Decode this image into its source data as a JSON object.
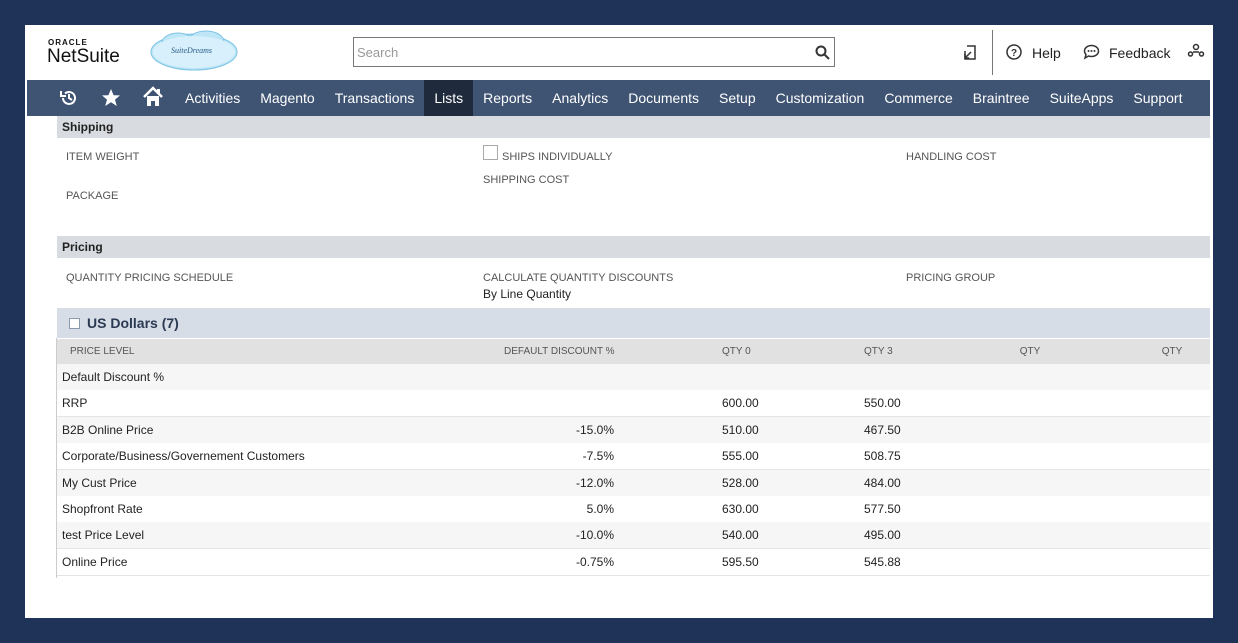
{
  "header": {
    "logo_top": "ORACLE",
    "logo_main": "NetSuite",
    "badge": "SuiteDreams",
    "search_placeholder": "Search",
    "help": "Help",
    "feedback": "Feedback"
  },
  "nav": {
    "items": [
      "Activities",
      "Magento",
      "Transactions",
      "Lists",
      "Reports",
      "Analytics",
      "Documents",
      "Setup",
      "Customization",
      "Commerce",
      "Braintree",
      "SuiteApps",
      "Support"
    ],
    "active": 3
  },
  "shipping": {
    "title": "Shipping",
    "item_weight": "ITEM WEIGHT",
    "ships_individually": "SHIPS INDIVIDUALLY",
    "handling_cost": "HANDLING COST",
    "package": "PACKAGE",
    "shipping_cost": "SHIPPING COST"
  },
  "pricing": {
    "title": "Pricing",
    "quantity_pricing_schedule": "QUANTITY PRICING SCHEDULE",
    "calculate_quantity_discounts": "CALCULATE QUANTITY DISCOUNTS",
    "calculate_value": "By Line Quantity",
    "pricing_group": "PRICING GROUP"
  },
  "price_table": {
    "title": "US Dollars (7)",
    "columns": [
      "PRICE LEVEL",
      "DEFAULT DISCOUNT %",
      "QTY 0",
      "QTY 3",
      "QTY",
      "QTY"
    ],
    "rows": [
      {
        "level": "Default Discount %"
      },
      {
        "level": "RRP",
        "qty0": "600.00",
        "qty3": "550.00"
      },
      {
        "level": "B2B Online Price",
        "discount": "-15.0%",
        "qty0": "510.00",
        "qty3": "467.50"
      },
      {
        "level": "Corporate/Business/Governement Customers",
        "discount": "-7.5%",
        "qty0": "555.00",
        "qty3": "508.75"
      },
      {
        "level": "My Cust Price",
        "discount": "-12.0%",
        "qty0": "528.00",
        "qty3": "484.00"
      },
      {
        "level": "Shopfront Rate",
        "discount": "5.0%",
        "qty0": "630.00",
        "qty3": "577.50"
      },
      {
        "level": "test Price Level",
        "discount": "-10.0%",
        "qty0": "540.00",
        "qty3": "495.00"
      },
      {
        "level": "Online Price",
        "discount": "-0.75%",
        "qty0": "595.50",
        "qty3": "545.88"
      }
    ]
  }
}
